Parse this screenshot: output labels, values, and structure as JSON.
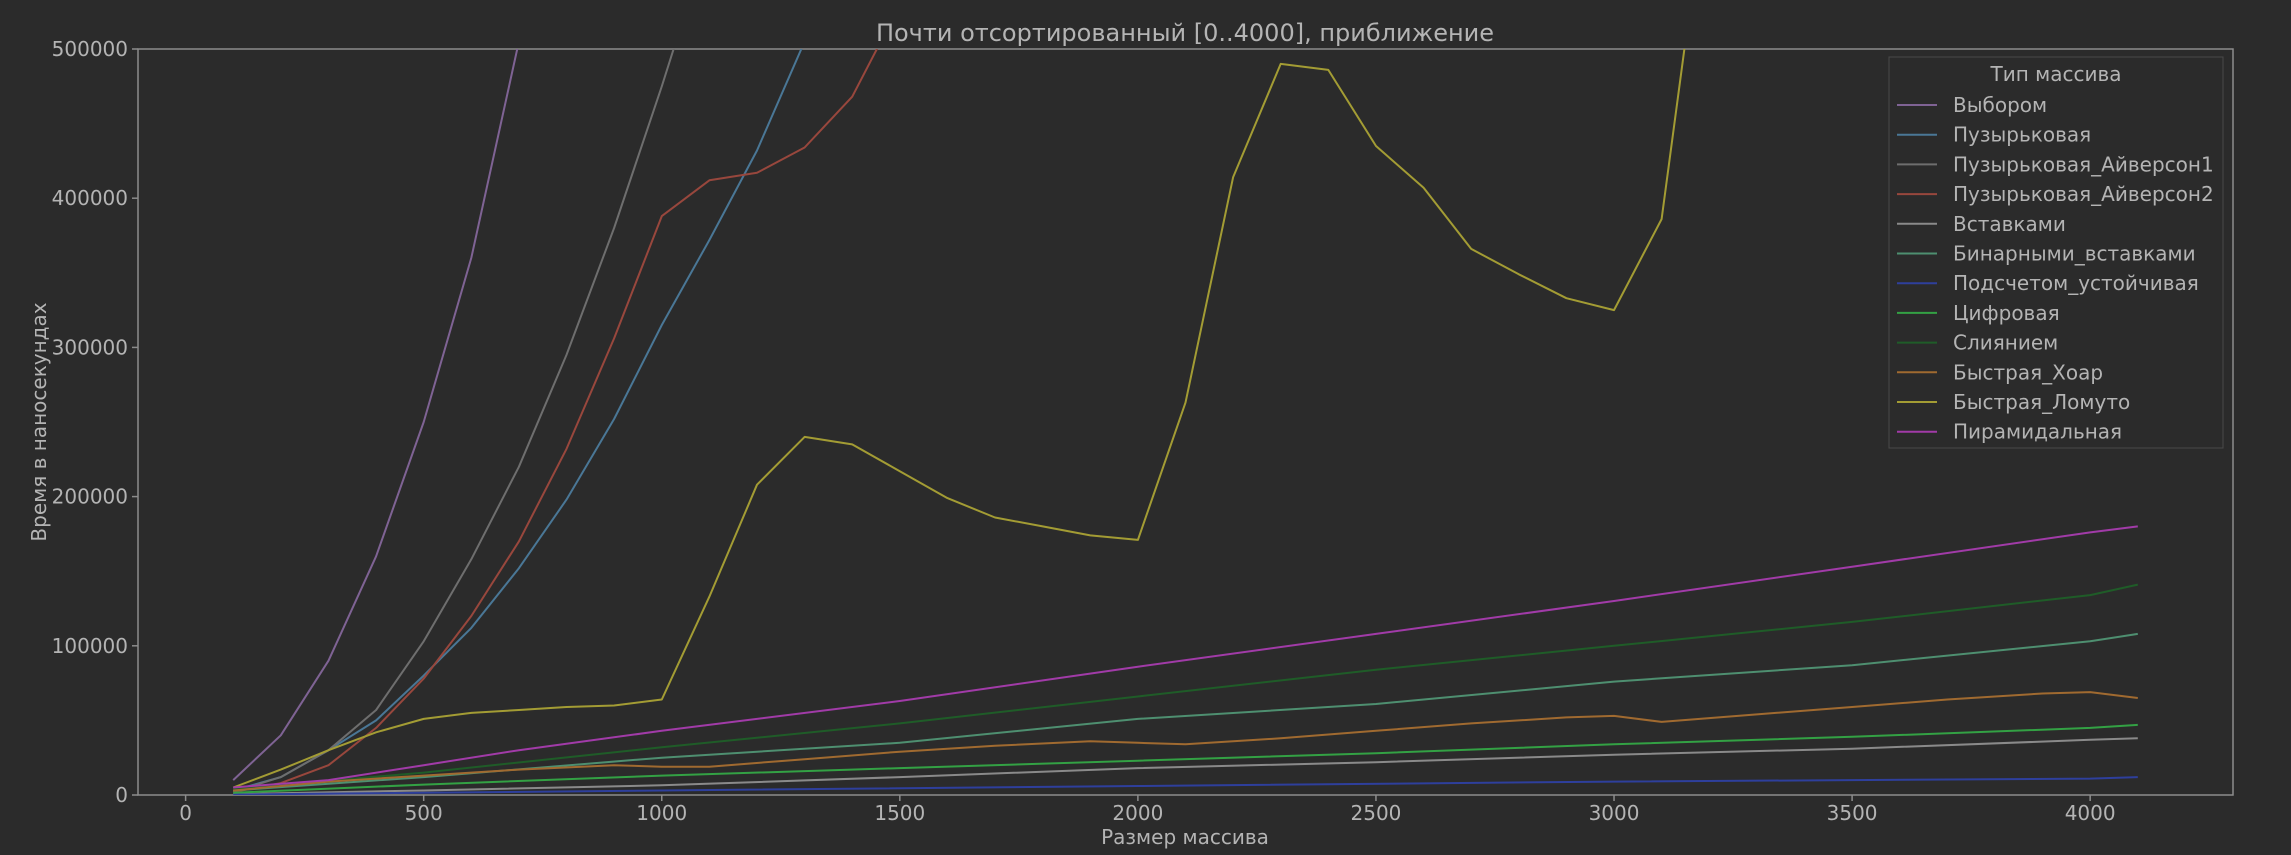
{
  "chart_data": {
    "type": "line",
    "title": "Почти отсортированный [0..4000], приближение",
    "xlabel": "Размер массива",
    "ylabel": "Время в наносекундах",
    "xlim": [
      -100,
      4300
    ],
    "ylim": [
      0,
      500000
    ],
    "xticks": [
      0,
      500,
      1000,
      1500,
      2000,
      2500,
      3000,
      3500,
      4000
    ],
    "yticks": [
      0,
      100000,
      200000,
      300000,
      400000,
      500000
    ],
    "grid": false,
    "legend_title": "Тип массива",
    "legend_position": "top-right",
    "series": [
      {
        "name": "Выбором",
        "color": "#7f6394",
        "points": [
          [
            100,
            10000
          ],
          [
            200,
            40000
          ],
          [
            300,
            90000
          ],
          [
            400,
            160000
          ],
          [
            500,
            250000
          ],
          [
            600,
            360000
          ],
          [
            700,
            505000
          ]
        ]
      },
      {
        "name": "Пузырьковая",
        "color": "#4a7796",
        "points": [
          [
            100,
            3000
          ],
          [
            200,
            12000
          ],
          [
            300,
            30000
          ],
          [
            400,
            50000
          ],
          [
            500,
            80000
          ],
          [
            600,
            112000
          ],
          [
            700,
            152000
          ],
          [
            800,
            198000
          ],
          [
            900,
            252000
          ],
          [
            1000,
            315000
          ],
          [
            1100,
            372000
          ],
          [
            1200,
            432000
          ],
          [
            1300,
            505000
          ]
        ]
      },
      {
        "name": "Пузырьковая_Айверсон1",
        "color": "#6e6e6e",
        "points": [
          [
            100,
            2000
          ],
          [
            200,
            12000
          ],
          [
            300,
            30000
          ],
          [
            400,
            57000
          ],
          [
            500,
            103000
          ],
          [
            600,
            158000
          ],
          [
            700,
            220000
          ],
          [
            800,
            295000
          ],
          [
            900,
            380000
          ],
          [
            1000,
            475000
          ],
          [
            1030,
            505000
          ]
        ]
      },
      {
        "name": "Пузырьковая_Айверсон2",
        "color": "#98473d",
        "points": [
          [
            100,
            2000
          ],
          [
            200,
            8000
          ],
          [
            300,
            20000
          ],
          [
            400,
            45000
          ],
          [
            500,
            78000
          ],
          [
            600,
            120000
          ],
          [
            700,
            170000
          ],
          [
            800,
            232000
          ],
          [
            900,
            306000
          ],
          [
            1000,
            388000
          ],
          [
            1100,
            412000
          ],
          [
            1200,
            417000
          ],
          [
            1300,
            434000
          ],
          [
            1400,
            468000
          ],
          [
            1460,
            505000
          ]
        ]
      },
      {
        "name": "Вставками",
        "color": "#8a8a8a",
        "points": [
          [
            100,
            600
          ],
          [
            500,
            3000
          ],
          [
            1000,
            6500
          ],
          [
            1500,
            12000
          ],
          [
            2000,
            18000
          ],
          [
            2500,
            22000
          ],
          [
            3000,
            27000
          ],
          [
            3500,
            31000
          ],
          [
            4000,
            37000
          ],
          [
            4100,
            38000
          ]
        ]
      },
      {
        "name": "Бинарными_вставками",
        "color": "#4e8f70",
        "points": [
          [
            100,
            3000
          ],
          [
            500,
            12000
          ],
          [
            1000,
            25000
          ],
          [
            1500,
            35000
          ],
          [
            2000,
            51000
          ],
          [
            2500,
            61000
          ],
          [
            3000,
            76000
          ],
          [
            3500,
            87000
          ],
          [
            4000,
            103000
          ],
          [
            4100,
            108000
          ]
        ]
      },
      {
        "name": "Подсчетом_устойчивая",
        "color": "#2e3f9c",
        "points": [
          [
            100,
            300
          ],
          [
            1000,
            3000
          ],
          [
            2000,
            6000
          ],
          [
            3000,
            9000
          ],
          [
            4000,
            11000
          ],
          [
            4100,
            12000
          ]
        ]
      },
      {
        "name": "Цифровая",
        "color": "#33a144",
        "points": [
          [
            100,
            1500
          ],
          [
            500,
            7000
          ],
          [
            1000,
            13000
          ],
          [
            1500,
            18000
          ],
          [
            2000,
            23000
          ],
          [
            2500,
            28000
          ],
          [
            3000,
            34000
          ],
          [
            3500,
            39000
          ],
          [
            4000,
            45000
          ],
          [
            4100,
            47000
          ]
        ]
      },
      {
        "name": "Слиянием",
        "color": "#1f5c28",
        "points": [
          [
            100,
            4000
          ],
          [
            500,
            15000
          ],
          [
            1000,
            32000
          ],
          [
            1500,
            48000
          ],
          [
            2000,
            66000
          ],
          [
            2500,
            84000
          ],
          [
            3000,
            100000
          ],
          [
            3500,
            116000
          ],
          [
            4000,
            134000
          ],
          [
            4100,
            141000
          ]
        ]
      },
      {
        "name": "Быстрая_Хоар",
        "color": "#a06a30",
        "points": [
          [
            100,
            3000
          ],
          [
            300,
            9000
          ],
          [
            500,
            13000
          ],
          [
            700,
            17000
          ],
          [
            900,
            20000
          ],
          [
            1000,
            19000
          ],
          [
            1100,
            19000
          ],
          [
            1300,
            24000
          ],
          [
            1500,
            29000
          ],
          [
            1700,
            33000
          ],
          [
            1900,
            36000
          ],
          [
            2000,
            35000
          ],
          [
            2100,
            34000
          ],
          [
            2300,
            38000
          ],
          [
            2500,
            43000
          ],
          [
            2700,
            48000
          ],
          [
            2900,
            52000
          ],
          [
            3000,
            53000
          ],
          [
            3100,
            49000
          ],
          [
            3300,
            54000
          ],
          [
            3500,
            59000
          ],
          [
            3700,
            64000
          ],
          [
            3900,
            68000
          ],
          [
            4000,
            69000
          ],
          [
            4100,
            65000
          ]
        ]
      },
      {
        "name": "Быстрая_Ломуто",
        "color": "#a39c34",
        "points": [
          [
            100,
            5000
          ],
          [
            200,
            17000
          ],
          [
            300,
            30000
          ],
          [
            400,
            42000
          ],
          [
            500,
            51000
          ],
          [
            600,
            55000
          ],
          [
            700,
            57000
          ],
          [
            800,
            59000
          ],
          [
            900,
            60000
          ],
          [
            1000,
            64000
          ],
          [
            1100,
            133000
          ],
          [
            1200,
            208000
          ],
          [
            1300,
            240000
          ],
          [
            1400,
            235000
          ],
          [
            1500,
            217000
          ],
          [
            1600,
            199000
          ],
          [
            1700,
            186000
          ],
          [
            1800,
            180000
          ],
          [
            1900,
            174000
          ],
          [
            2000,
            171000
          ],
          [
            2100,
            263000
          ],
          [
            2200,
            414000
          ],
          [
            2300,
            490000
          ],
          [
            2400,
            486000
          ],
          [
            2500,
            435000
          ],
          [
            2600,
            407000
          ],
          [
            2700,
            366000
          ],
          [
            2800,
            349000
          ],
          [
            2900,
            333000
          ],
          [
            3000,
            325000
          ],
          [
            3100,
            386000
          ],
          [
            3150,
            505000
          ]
        ]
      },
      {
        "name": "Пирамидальная",
        "color": "#a13ba8",
        "points": [
          [
            100,
            5000
          ],
          [
            300,
            10000
          ],
          [
            500,
            20000
          ],
          [
            700,
            30000
          ],
          [
            1000,
            43000
          ],
          [
            1500,
            63000
          ],
          [
            2000,
            86000
          ],
          [
            2500,
            108000
          ],
          [
            3000,
            130000
          ],
          [
            3500,
            153000
          ],
          [
            4000,
            176000
          ],
          [
            4100,
            180000
          ]
        ]
      }
    ]
  }
}
